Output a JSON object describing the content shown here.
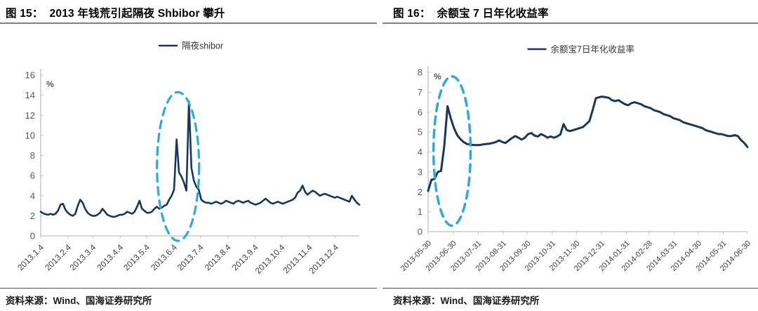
{
  "chart_data": [
    {
      "type": "line",
      "fig_label": "图 15",
      "title": "图 15：  2013 年钱荒引起隔夜 Shbibor 攀升",
      "legend": [
        "隔夜shibor"
      ],
      "unit": "%",
      "source": "资料来源：Wind、国海证券研究所",
      "ylim": [
        0,
        16
      ],
      "yticks": [
        0,
        2,
        4,
        6,
        8,
        10,
        12,
        14,
        16
      ],
      "xticklabels": [
        "2013.1.4",
        "2013.2.4",
        "2013.3.4",
        "2013.4.4",
        "2013.5.4",
        "2013.6.4",
        "2013.7.4",
        "2013.8.4",
        "2013.9.4",
        "2013.10.4",
        "2013.11.4",
        "2013.12.4"
      ],
      "xtick_pos": [
        0,
        0.0859,
        0.1634,
        0.2493,
        0.3324,
        0.4183,
        0.5014,
        0.5873,
        0.6731,
        0.7562,
        0.8421,
        0.9252
      ],
      "grid": false,
      "legend_position": "top-center",
      "line_color": "#17375e",
      "ellipse_color": "#29abe2",
      "annotation": "dashed ellipse highlighting June 2013 liquidity-crunch spikes (peaks ~9.6% and ~13.4%)",
      "annotation_ellipse": {
        "x_frac": 0.431,
        "y_value": 6.9,
        "rx_frac": 0.066,
        "ry_value": 7.4
      },
      "series": [
        {
          "name": "隔夜shibor",
          "values": [
            2.4,
            2.25,
            2.15,
            2.1,
            2.2,
            2.1,
            2.2,
            2.5,
            3.1,
            3.2,
            2.6,
            2.3,
            2.1,
            2.0,
            2.2,
            3.0,
            3.6,
            3.3,
            2.7,
            2.3,
            2.1,
            2.0,
            2.0,
            2.1,
            2.3,
            2.7,
            2.4,
            2.1,
            2.0,
            1.9,
            1.9,
            2.0,
            2.1,
            2.1,
            2.2,
            2.4,
            2.3,
            2.2,
            2.4,
            2.9,
            3.5,
            2.7,
            2.5,
            2.3,
            2.3,
            2.4,
            2.7,
            2.9,
            2.7,
            2.8,
            3.0,
            3.1,
            3.6,
            4.0,
            4.6,
            9.6,
            6.3,
            5.9,
            5.3,
            4.5,
            13.4,
            6.8,
            5.5,
            4.9,
            4.6,
            3.6,
            3.4,
            3.3,
            3.3,
            3.2,
            3.3,
            3.4,
            3.3,
            3.2,
            3.3,
            3.5,
            3.4,
            3.3,
            3.2,
            3.4,
            3.5,
            3.4,
            3.3,
            3.4,
            3.5,
            3.3,
            3.2,
            3.1,
            3.2,
            3.3,
            3.5,
            3.7,
            3.5,
            3.3,
            3.2,
            3.3,
            3.4,
            3.3,
            3.2,
            3.3,
            3.4,
            3.5,
            3.6,
            3.8,
            4.3,
            4.5,
            5.0,
            4.4,
            4.1,
            4.3,
            4.5,
            4.4,
            4.2,
            4.0,
            4.1,
            4.2,
            4.1,
            4.0,
            3.9,
            3.8,
            3.9,
            3.8,
            3.7,
            3.6,
            3.5,
            3.4,
            4.0,
            3.6,
            3.3,
            3.1
          ]
        }
      ]
    },
    {
      "type": "line",
      "fig_label": "图 16",
      "title": "图 16：  余额宝 7 日年化收益率",
      "legend": [
        "余额宝7日年化收益率"
      ],
      "unit": "%",
      "source": "资料来源：Wind、国海证券研究所",
      "ylim": [
        0,
        8
      ],
      "yticks": [
        0,
        1,
        2,
        3,
        4,
        5,
        6,
        7,
        8
      ],
      "xticklabels": [
        "2013-05-30",
        "2013-06-30",
        "2013-07-31",
        "2013-08-31",
        "2013-09-30",
        "2013-10-31",
        "2013-11-30",
        "2013-12-31",
        "2014-01-31",
        "2014-02-28",
        "2014-03-31",
        "2014-04-30",
        "2014-05-31",
        "2014-06-30"
      ],
      "xtick_pos": [
        0,
        0.0783,
        0.1566,
        0.2348,
        0.3106,
        0.3889,
        0.4646,
        0.5429,
        0.6212,
        0.6919,
        0.7702,
        0.846,
        0.9242,
        1.0
      ],
      "grid": false,
      "legend_position": "top-center",
      "line_color": "#17375e",
      "ellipse_color": "#29abe2",
      "annotation": "dashed ellipse highlighting June 2013 yield surge from ~2.1% to ~6.3%",
      "annotation_ellipse": {
        "x_frac": 0.075,
        "y_value": 4.05,
        "rx_frac": 0.058,
        "ry_value": 3.75
      },
      "series": [
        {
          "name": "余额宝7日年化收益率",
          "values": [
            2.05,
            2.6,
            2.65,
            3.0,
            3.05,
            4.3,
            6.3,
            5.7,
            5.2,
            4.85,
            4.65,
            4.5,
            4.4,
            4.38,
            4.35,
            4.35,
            4.35,
            4.38,
            4.4,
            4.42,
            4.45,
            4.5,
            4.58,
            4.5,
            4.45,
            4.58,
            4.7,
            4.8,
            4.72,
            4.62,
            4.72,
            4.9,
            4.95,
            4.82,
            4.78,
            4.9,
            4.82,
            4.72,
            4.78,
            4.72,
            4.78,
            4.88,
            5.4,
            5.1,
            5.05,
            5.1,
            5.15,
            5.2,
            5.25,
            5.4,
            5.55,
            6.1,
            6.7,
            6.75,
            6.78,
            6.75,
            6.72,
            6.6,
            6.55,
            6.6,
            6.5,
            6.4,
            6.35,
            6.45,
            6.5,
            6.45,
            6.4,
            6.3,
            6.25,
            6.2,
            6.1,
            6.05,
            6.0,
            5.9,
            5.85,
            5.8,
            5.7,
            5.65,
            5.6,
            5.5,
            5.45,
            5.4,
            5.35,
            5.3,
            5.25,
            5.2,
            5.1,
            5.05,
            5.0,
            4.95,
            4.9,
            4.9,
            4.85,
            4.8,
            4.8,
            4.85,
            4.8,
            4.6,
            4.45,
            4.25
          ]
        }
      ]
    }
  ]
}
